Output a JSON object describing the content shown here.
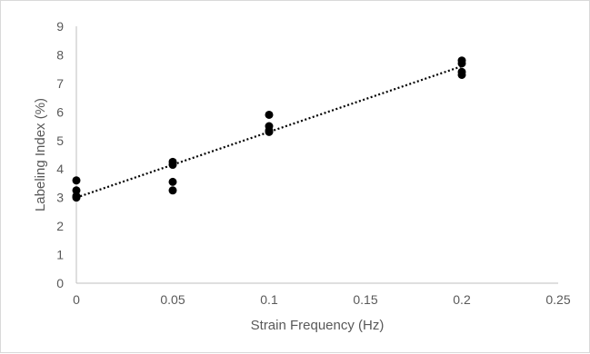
{
  "chart_data": {
    "type": "scatter",
    "title": "",
    "xlabel": "Strain Frequency (Hz)",
    "ylabel": "Labeling Index (%)",
    "xlim": [
      0,
      0.25
    ],
    "ylim": [
      0,
      9
    ],
    "x_ticks": [
      0,
      0.05,
      0.1,
      0.15,
      0.2,
      0.25
    ],
    "x_tick_labels": [
      "0",
      "0.05",
      "0.1",
      "0.15",
      "0.2",
      "0.25"
    ],
    "y_ticks": [
      0,
      1,
      2,
      3,
      4,
      5,
      6,
      7,
      8,
      9
    ],
    "y_tick_labels": [
      "0",
      "1",
      "2",
      "3",
      "4",
      "5",
      "6",
      "7",
      "8",
      "9"
    ],
    "grid": false,
    "legend": "none",
    "series": [
      {
        "points": [
          {
            "x": 0,
            "y": 3.6
          },
          {
            "x": 0,
            "y": 3.25
          },
          {
            "x": 0,
            "y": 3.05
          },
          {
            "x": 0,
            "y": 3.0
          },
          {
            "x": 0.05,
            "y": 4.25
          },
          {
            "x": 0.05,
            "y": 4.15
          },
          {
            "x": 0.05,
            "y": 3.55
          },
          {
            "x": 0.05,
            "y": 3.25
          },
          {
            "x": 0.1,
            "y": 5.9
          },
          {
            "x": 0.1,
            "y": 5.5
          },
          {
            "x": 0.1,
            "y": 5.35
          },
          {
            "x": 0.1,
            "y": 5.3
          },
          {
            "x": 0.2,
            "y": 7.8
          },
          {
            "x": 0.2,
            "y": 7.7
          },
          {
            "x": 0.2,
            "y": 7.4
          },
          {
            "x": 0.2,
            "y": 7.3
          }
        ],
        "color": "#000000"
      }
    ],
    "trendline": {
      "type": "linear",
      "style": "dotted",
      "from": {
        "x": 0,
        "y": 3.0
      },
      "to": {
        "x": 0.2,
        "y": 7.6
      },
      "color": "#000000"
    },
    "axis_color": "#bfbfbf",
    "text_color": "#595959"
  }
}
